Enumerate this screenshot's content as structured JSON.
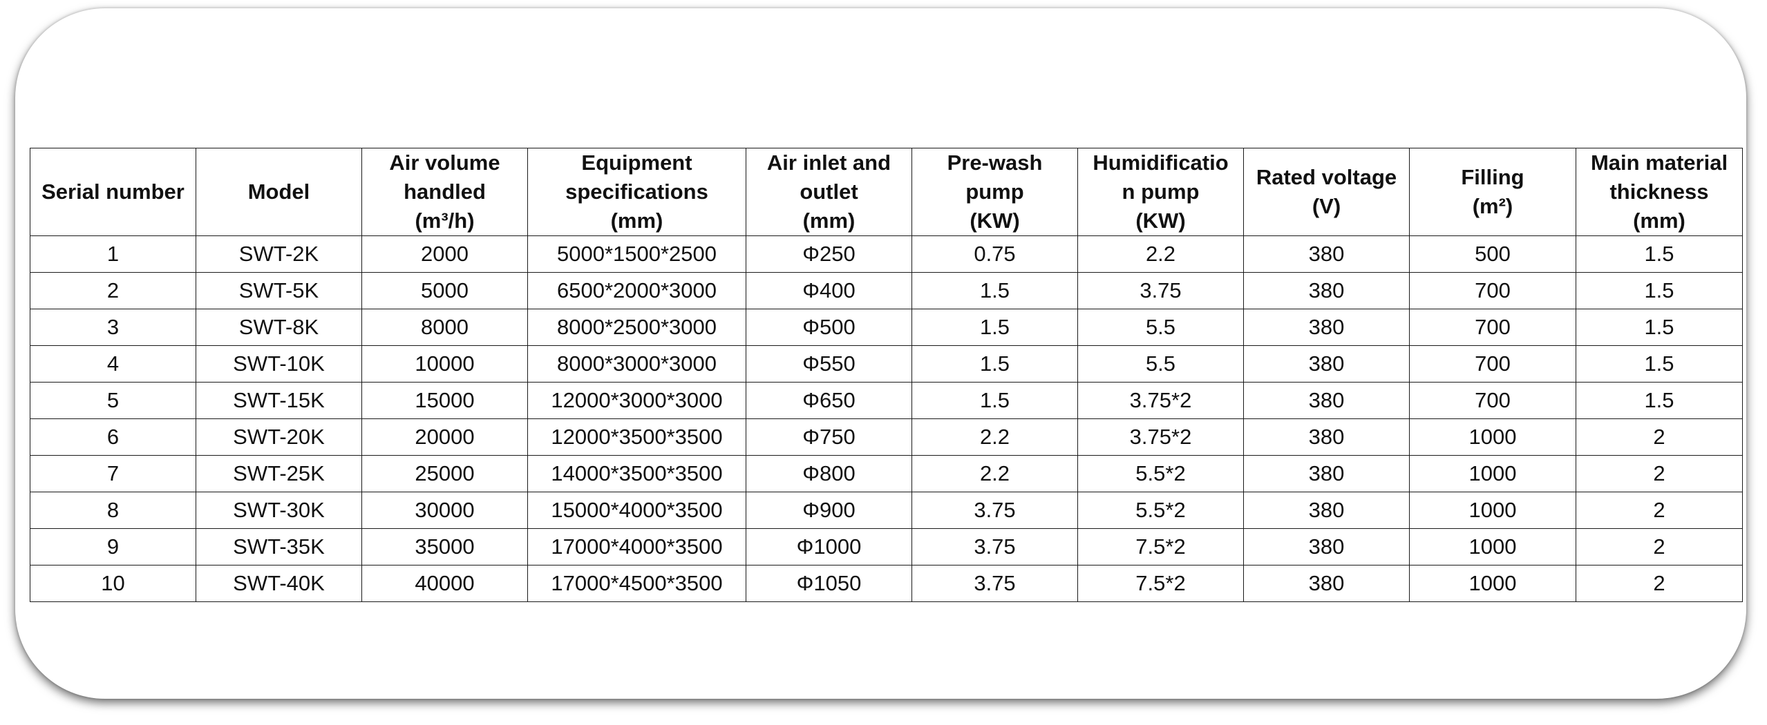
{
  "table": {
    "headers": [
      [
        "Serial number"
      ],
      [
        "Model"
      ],
      [
        "Air volume",
        "handled",
        "(m³/h)"
      ],
      [
        "Equipment",
        "specifications",
        "(mm)"
      ],
      [
        "Air inlet and",
        "outlet",
        "(mm)"
      ],
      [
        "Pre-wash",
        "pump",
        "(KW)"
      ],
      [
        "Humidificatio",
        "n pump",
        "(KW)"
      ],
      [
        "Rated voltage",
        "(V)"
      ],
      [
        "Filling",
        "(m²)"
      ],
      [
        "Main material",
        "thickness",
        "(mm)"
      ]
    ],
    "rows": [
      [
        "1",
        "SWT-2K",
        "2000",
        "5000*1500*2500",
        "Φ250",
        "0.75",
        "2.2",
        "380",
        "500",
        "1.5"
      ],
      [
        "2",
        "SWT-5K",
        "5000",
        "6500*2000*3000",
        "Φ400",
        "1.5",
        "3.75",
        "380",
        "700",
        "1.5"
      ],
      [
        "3",
        "SWT-8K",
        "8000",
        "8000*2500*3000",
        "Φ500",
        "1.5",
        "5.5",
        "380",
        "700",
        "1.5"
      ],
      [
        "4",
        "SWT-10K",
        "10000",
        "8000*3000*3000",
        "Φ550",
        "1.5",
        "5.5",
        "380",
        "700",
        "1.5"
      ],
      [
        "5",
        "SWT-15K",
        "15000",
        "12000*3000*3000",
        "Φ650",
        "1.5",
        "3.75*2",
        "380",
        "700",
        "1.5"
      ],
      [
        "6",
        "SWT-20K",
        "20000",
        "12000*3500*3500",
        "Φ750",
        "2.2",
        "3.75*2",
        "380",
        "1000",
        "2"
      ],
      [
        "7",
        "SWT-25K",
        "25000",
        "14000*3500*3500",
        "Φ800",
        "2.2",
        "5.5*2",
        "380",
        "1000",
        "2"
      ],
      [
        "8",
        "SWT-30K",
        "30000",
        "15000*4000*3500",
        "Φ900",
        "3.75",
        "5.5*2",
        "380",
        "1000",
        "2"
      ],
      [
        "9",
        "SWT-35K",
        "35000",
        "17000*4000*3500",
        "Φ1000",
        "3.75",
        "7.5*2",
        "380",
        "1000",
        "2"
      ],
      [
        "10",
        "SWT-40K",
        "40000",
        "17000*4500*3500",
        "Φ1050",
        "3.75",
        "7.5*2",
        "380",
        "1000",
        "2"
      ]
    ]
  }
}
